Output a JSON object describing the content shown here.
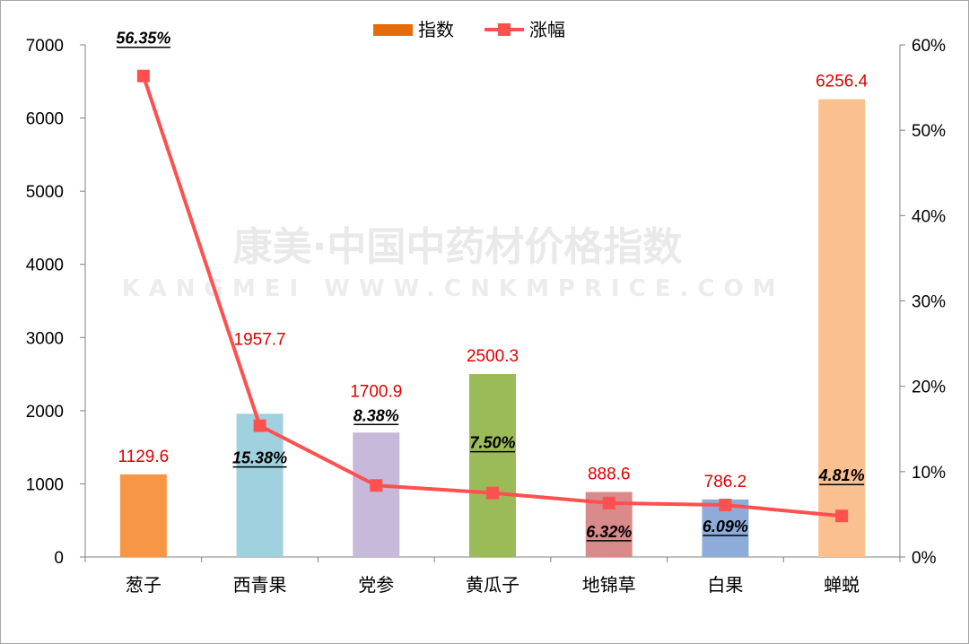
{
  "watermark": {
    "line1": "康美·中国中药材价格指数",
    "line2": "KANGMEI WWW.CNKMPRICE.COM"
  },
  "chart_data": {
    "type": "bar",
    "categories": [
      "葱子",
      "西青果",
      "党参",
      "黄瓜子",
      "地锦草",
      "白果",
      "蝉蜕"
    ],
    "series": [
      {
        "name": "指数",
        "type": "bar",
        "axis": "left",
        "values": [
          1129.6,
          1957.7,
          1700.9,
          2500.3,
          888.6,
          786.2,
          6256.4
        ],
        "labels": [
          "1129.6",
          "1957.7",
          "1700.9",
          "2500.3",
          "888.6",
          "786.2",
          "6256.4"
        ],
        "colors": [
          "#f79646",
          "#9fd1df",
          "#c6b9d9",
          "#9bbb59",
          "#d98b8b",
          "#8eacd9",
          "#fac090"
        ]
      },
      {
        "name": "涨幅",
        "type": "line",
        "axis": "right",
        "values": [
          56.35,
          15.38,
          8.38,
          7.5,
          6.32,
          6.09,
          4.81
        ],
        "labels": [
          "56.35%",
          "15.38%",
          "8.38%",
          "7.50%",
          "6.32%",
          "6.09%",
          "4.81%"
        ],
        "color": "#ff5050"
      }
    ],
    "legend": {
      "position": "top-center",
      "bar_swatch_color": "#e46c0a",
      "line_color": "#ff5050"
    },
    "y_left": {
      "min": 0,
      "max": 7000,
      "ticks": [
        0,
        1000,
        2000,
        3000,
        4000,
        5000,
        6000,
        7000
      ]
    },
    "y_right": {
      "min": 0,
      "max": 60,
      "ticks": [
        "0%",
        "10%",
        "20%",
        "30%",
        "40%",
        "50%",
        "60%"
      ]
    },
    "value_label_color": "#e00000",
    "grid": false
  }
}
